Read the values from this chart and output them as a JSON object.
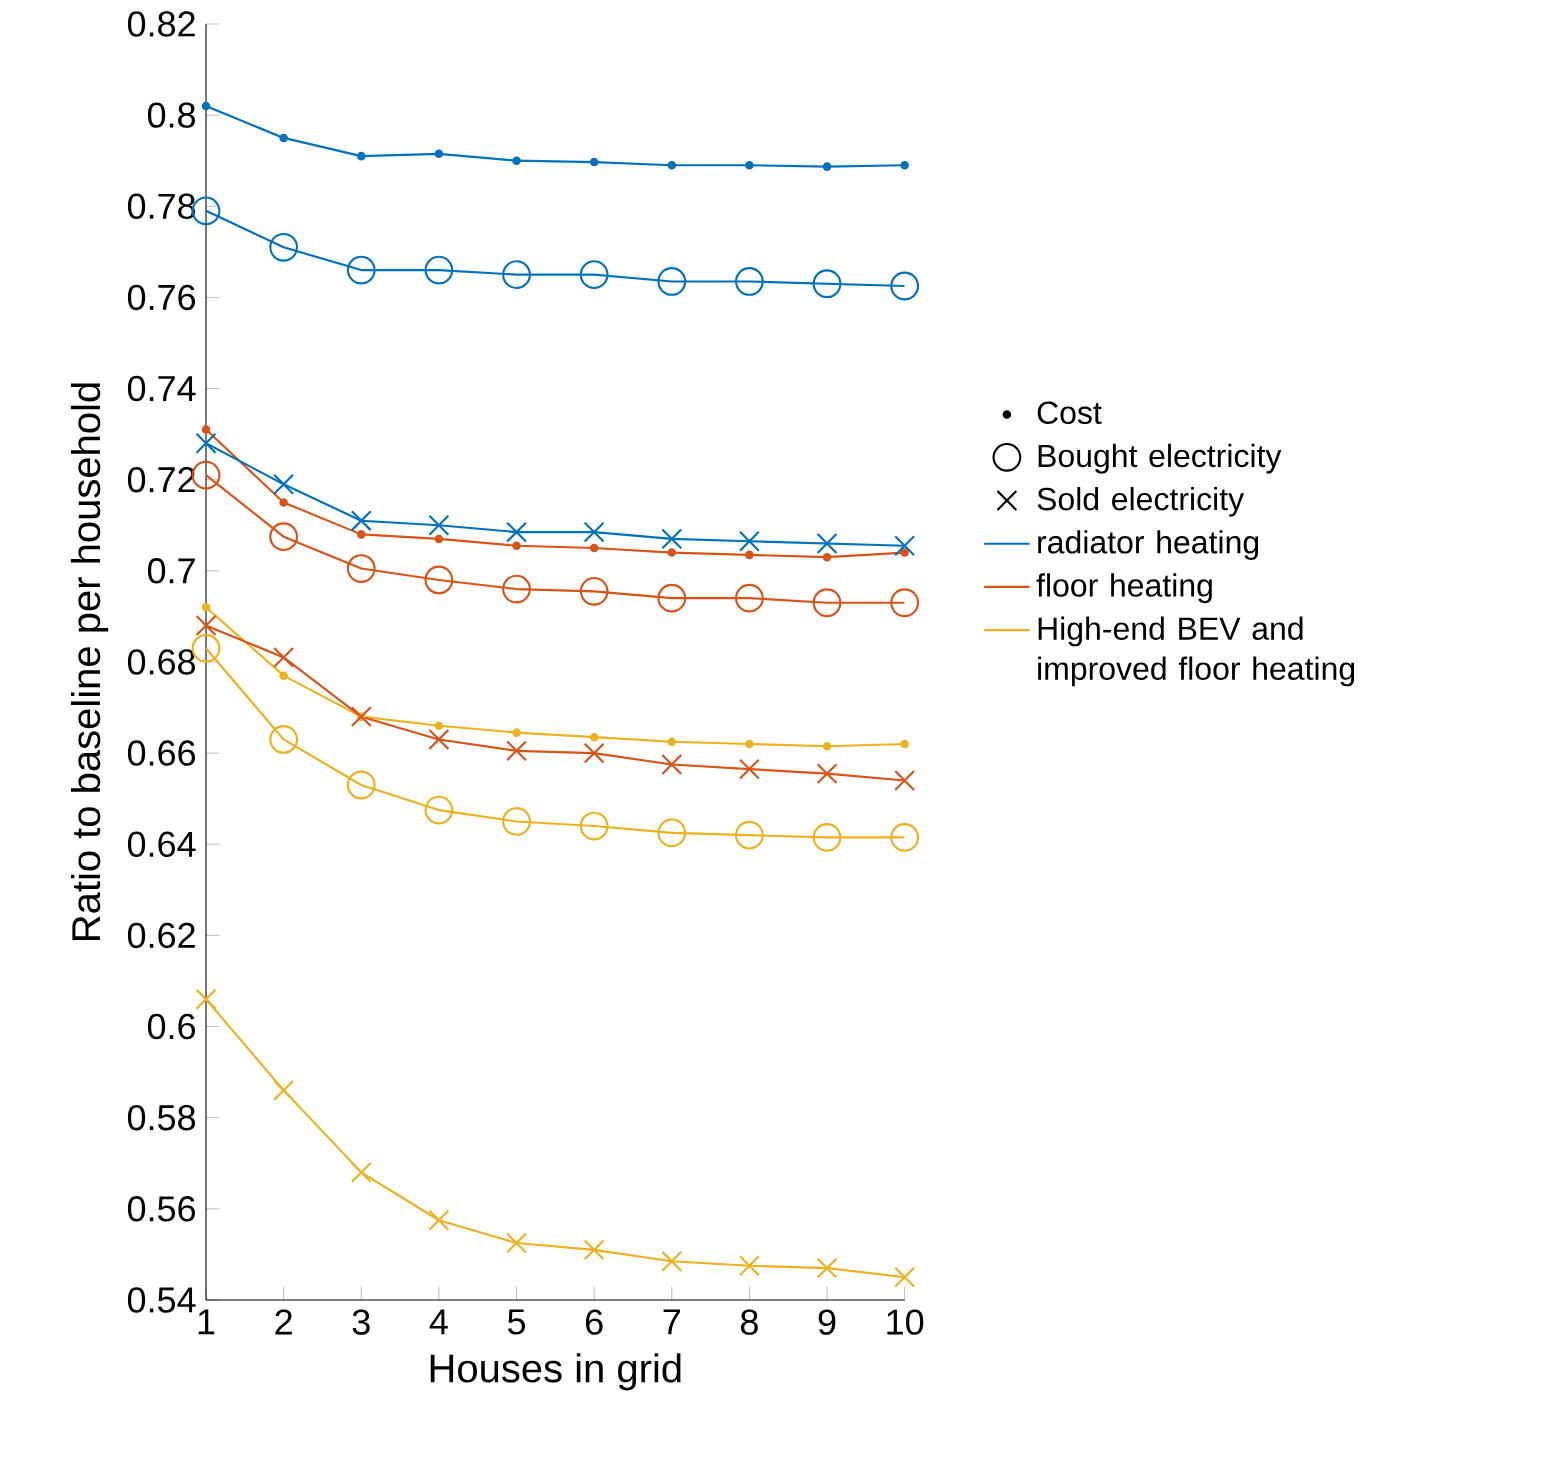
{
  "chart_data": {
    "type": "line",
    "xlabel": "Houses in grid",
    "ylabel": "Ratio to baseline per household",
    "x": [
      1,
      2,
      3,
      4,
      5,
      6,
      7,
      8,
      9,
      10
    ],
    "xlim": [
      1,
      10
    ],
    "xticks": [
      1,
      2,
      3,
      4,
      5,
      6,
      7,
      8,
      9,
      10
    ],
    "ylim": [
      0.54,
      0.82
    ],
    "yticks": [
      0.54,
      0.56,
      0.58,
      0.6,
      0.62,
      0.64,
      0.66,
      0.68,
      0.7,
      0.72,
      0.74,
      0.76,
      0.78,
      0.8,
      0.82
    ],
    "legend": "right",
    "grid": false,
    "series": [
      {
        "type": "scatter",
        "name": "Cost",
        "color": "#000000",
        "marker": "dot",
        "values": [
          null,
          null,
          null,
          null,
          null,
          null,
          null,
          null,
          null,
          null
        ]
      },
      {
        "type": "scatter",
        "name": "Bought electricity",
        "color": "#000000",
        "marker": "circle",
        "values": [
          null,
          null,
          null,
          null,
          null,
          null,
          null,
          null,
          null,
          null
        ]
      },
      {
        "type": "scatter",
        "name": "Sold electricity",
        "color": "#000000",
        "marker": "cross",
        "values": [
          null,
          null,
          null,
          null,
          null,
          null,
          null,
          null,
          null,
          null
        ]
      },
      {
        "name": "radiator heating",
        "color": "#0072bd",
        "marker": "dot",
        "values": [
          0.802,
          0.795,
          0.791,
          0.7915,
          0.79,
          0.7897,
          0.789,
          0.789,
          0.7887,
          0.789
        ]
      },
      {
        "name": "floor heating",
        "color": "#d95319",
        "marker": "dot",
        "values": [
          0.731,
          0.715,
          0.708,
          0.707,
          0.7055,
          0.705,
          0.704,
          0.7035,
          0.703,
          0.704
        ]
      },
      {
        "name": "High-end BEV and improved floor heating",
        "color": "#edb120",
        "marker": "dot",
        "values": [
          0.692,
          0.677,
          0.668,
          0.666,
          0.6645,
          0.6635,
          0.6625,
          0.662,
          0.6615,
          0.662
        ]
      },
      {
        "color": "#0072bd",
        "marker": "circle",
        "values": [
          0.779,
          0.771,
          0.766,
          0.766,
          0.765,
          0.765,
          0.7635,
          0.7635,
          0.763,
          0.7625
        ]
      },
      {
        "color": "#0072bd",
        "marker": "cross",
        "values": [
          0.728,
          0.719,
          0.711,
          0.71,
          0.7085,
          0.7085,
          0.707,
          0.7065,
          0.706,
          0.7055
        ]
      },
      {
        "color": "#d95319",
        "marker": "circle",
        "values": [
          0.721,
          0.7075,
          0.7005,
          0.698,
          0.696,
          0.6955,
          0.694,
          0.694,
          0.693,
          0.693
        ]
      },
      {
        "color": "#d95319",
        "marker": "cross",
        "values": [
          0.688,
          0.681,
          0.668,
          0.663,
          0.6605,
          0.66,
          0.6575,
          0.6565,
          0.6555,
          0.654
        ]
      },
      {
        "color": "#edb120",
        "marker": "circle",
        "values": [
          0.683,
          0.663,
          0.653,
          0.6475,
          0.645,
          0.644,
          0.6425,
          0.642,
          0.6415,
          0.6415
        ]
      },
      {
        "color": "#edb120",
        "marker": "cross",
        "values": [
          0.606,
          0.586,
          0.568,
          0.5575,
          0.5525,
          0.551,
          0.5485,
          0.5475,
          0.547,
          0.545
        ]
      }
    ]
  }
}
